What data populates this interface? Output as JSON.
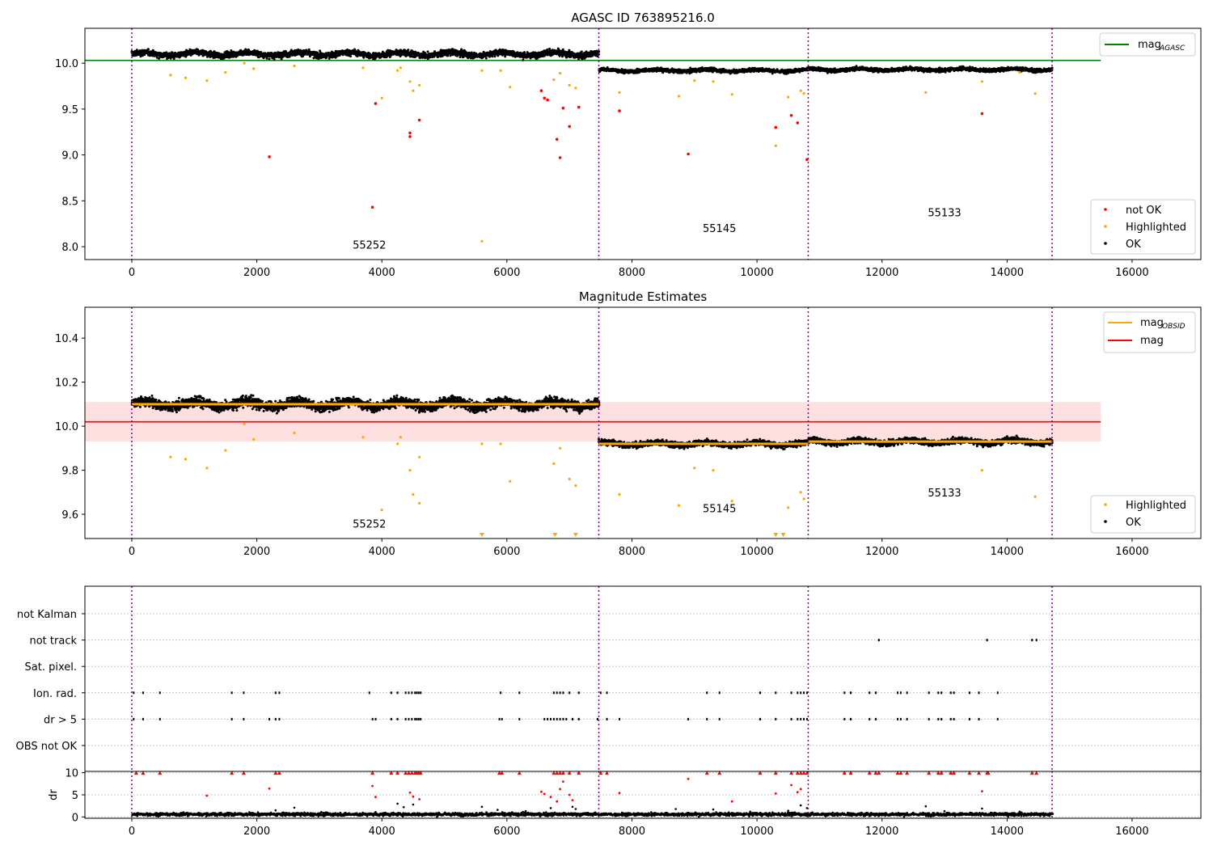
{
  "figure": {
    "title_top": "AGASC ID 763895216.0",
    "title_middle": "Magnitude Estimates"
  },
  "obsids": [
    {
      "id": "55252",
      "start": 0,
      "end": 7470
    },
    {
      "id": "55145",
      "start": 7470,
      "end": 10820
    },
    {
      "id": "55133",
      "start": 10820,
      "end": 14720
    }
  ],
  "chart_data": [
    {
      "type": "scatter",
      "title": "AGASC ID 763895216.0",
      "xlim": [
        -750,
        17100
      ],
      "ylim": [
        7.86,
        10.38
      ],
      "x_ticks": [
        0,
        2000,
        4000,
        6000,
        8000,
        10000,
        12000,
        14000,
        16000
      ],
      "y_ticks": [
        8.0,
        8.5,
        9.0,
        9.5,
        10.0
      ],
      "y_tick_labels": [
        "8.0",
        "8.5",
        "9.0",
        "9.5",
        "10.0"
      ],
      "legend_top": {
        "placement": "top-right",
        "entries": [
          {
            "label": "mag",
            "sub": "AGASC",
            "color": "#008000"
          }
        ]
      },
      "legend_bottom": {
        "placement": "lower-right",
        "entries": [
          {
            "label": "not OK",
            "color": "#ff0000"
          },
          {
            "label": "Highlighted",
            "color": "#ffa500"
          },
          {
            "label": "OK",
            "color": "#000000"
          }
        ]
      },
      "mag_agasc": 10.03,
      "ok_bands": [
        {
          "x": [
            0,
            7470
          ],
          "mean": 10.1,
          "spread": 0.05
        },
        {
          "x": [
            7470,
            10820
          ],
          "mean": 9.92,
          "spread": 0.03
        },
        {
          "x": [
            10820,
            14720
          ],
          "mean": 9.93,
          "spread": 0.03
        }
      ],
      "highlighted": [
        [
          620,
          9.87
        ],
        [
          860,
          9.84
        ],
        [
          1200,
          9.81
        ],
        [
          1500,
          9.9
        ],
        [
          1800,
          10.0
        ],
        [
          1950,
          9.94
        ],
        [
          2600,
          9.97
        ],
        [
          3700,
          9.95
        ],
        [
          4000,
          9.62
        ],
        [
          4250,
          9.92
        ],
        [
          4300,
          9.95
        ],
        [
          4450,
          9.8
        ],
        [
          4500,
          9.7
        ],
        [
          4600,
          9.76
        ],
        [
          5600,
          9.92
        ],
        [
          5600,
          8.06
        ],
        [
          5900,
          9.92
        ],
        [
          6050,
          9.74
        ],
        [
          6750,
          9.82
        ],
        [
          6850,
          9.89
        ],
        [
          7000,
          9.76
        ],
        [
          7100,
          9.73
        ],
        [
          7800,
          9.68
        ],
        [
          8750,
          9.64
        ],
        [
          9000,
          9.81
        ],
        [
          9300,
          9.8
        ],
        [
          9600,
          9.66
        ],
        [
          10300,
          9.1
        ],
        [
          10500,
          9.63
        ],
        [
          10700,
          9.7
        ],
        [
          10750,
          9.67
        ],
        [
          12700,
          9.68
        ],
        [
          13600,
          9.8
        ],
        [
          14200,
          9.9
        ],
        [
          14450,
          9.67
        ]
      ],
      "not_ok": [
        [
          2200,
          8.98
        ],
        [
          3850,
          8.43
        ],
        [
          3900,
          9.56
        ],
        [
          4450,
          9.24
        ],
        [
          4450,
          9.2
        ],
        [
          4600,
          9.38
        ],
        [
          6550,
          9.7
        ],
        [
          6600,
          9.62
        ],
        [
          6650,
          9.6
        ],
        [
          6800,
          9.17
        ],
        [
          6850,
          8.97
        ],
        [
          6900,
          9.51
        ],
        [
          7000,
          9.31
        ],
        [
          7150,
          9.52
        ],
        [
          7800,
          9.48
        ],
        [
          8900,
          9.01
        ],
        [
          10300,
          9.3
        ],
        [
          10550,
          9.43
        ],
        [
          10650,
          9.35
        ],
        [
          10800,
          8.95
        ],
        [
          13600,
          9.45
        ]
      ],
      "obsid_labels": [
        {
          "id": "55252",
          "x": 3800,
          "y": 7.98
        },
        {
          "id": "55145",
          "x": 9400,
          "y": 8.16
        },
        {
          "id": "55133",
          "x": 13000,
          "y": 8.33
        }
      ]
    },
    {
      "type": "scatter",
      "title": "Magnitude Estimates",
      "xlim": [
        -750,
        17100
      ],
      "ylim": [
        9.49,
        10.54
      ],
      "x_ticks": [
        0,
        2000,
        4000,
        6000,
        8000,
        10000,
        12000,
        14000,
        16000
      ],
      "y_ticks": [
        9.6,
        9.8,
        10.0,
        10.2,
        10.4
      ],
      "y_tick_labels": [
        "9.6",
        "9.8",
        "10.0",
        "10.2",
        "10.4"
      ],
      "legend_top": {
        "placement": "top-right",
        "entries": [
          {
            "label": "mag",
            "sub": "OBSID",
            "color": "#ffa500"
          },
          {
            "label": "mag",
            "sub": "",
            "color": "#ff0000"
          }
        ]
      },
      "legend_bottom": {
        "placement": "lower-right",
        "entries": [
          {
            "label": "Highlighted",
            "color": "#ffa500"
          },
          {
            "label": "OK",
            "color": "#000000"
          }
        ]
      },
      "mag": 10.02,
      "mag_band": [
        9.93,
        10.11
      ],
      "mag_obsid": [
        {
          "x": [
            0,
            7470
          ],
          "y": 10.1
        },
        {
          "x": [
            7470,
            10820
          ],
          "y": 9.92
        },
        {
          "x": [
            10820,
            14720
          ],
          "y": 9.93
        }
      ],
      "ok_bands": [
        {
          "x": [
            0,
            7470
          ],
          "mean": 10.1,
          "spread": 0.035
        },
        {
          "x": [
            7470,
            10820
          ],
          "mean": 9.92,
          "spread": 0.02
        },
        {
          "x": [
            10820,
            14720
          ],
          "mean": 9.93,
          "spread": 0.02
        }
      ],
      "highlighted": [
        [
          620,
          9.86
        ],
        [
          860,
          9.85
        ],
        [
          1200,
          9.81
        ],
        [
          1500,
          9.89
        ],
        [
          1800,
          10.01
        ],
        [
          1950,
          9.94
        ],
        [
          2600,
          9.97
        ],
        [
          3700,
          9.95
        ],
        [
          4000,
          9.62
        ],
        [
          4250,
          9.92
        ],
        [
          4300,
          9.95
        ],
        [
          4450,
          9.8
        ],
        [
          4500,
          9.69
        ],
        [
          4600,
          9.65
        ],
        [
          4600,
          9.86
        ],
        [
          5600,
          9.92
        ],
        [
          5900,
          9.92
        ],
        [
          6050,
          9.75
        ],
        [
          6750,
          9.83
        ],
        [
          6850,
          9.9
        ],
        [
          7000,
          9.76
        ],
        [
          7100,
          9.73
        ],
        [
          7800,
          9.69
        ],
        [
          8750,
          9.64
        ],
        [
          9000,
          9.81
        ],
        [
          9300,
          9.8
        ],
        [
          9600,
          9.66
        ],
        [
          10500,
          9.63
        ],
        [
          10700,
          9.7
        ],
        [
          10750,
          9.67
        ],
        [
          13600,
          9.8
        ],
        [
          14450,
          9.68
        ]
      ],
      "clipped": [
        5600,
        6770,
        7100,
        10300,
        10420
      ],
      "obsid_labels": [
        {
          "id": "55252",
          "x": 3800,
          "y": 9.54
        },
        {
          "id": "55145",
          "x": 9400,
          "y": 9.61
        },
        {
          "id": "55133",
          "x": 13000,
          "y": 9.68
        }
      ]
    },
    {
      "type": "scatter",
      "title": "",
      "xlim": [
        -750,
        17100
      ],
      "flag_rows": [
        "not Kalman",
        "not track",
        "Sat. pixel.",
        "Ion. rad.",
        "dr > 5",
        "OBS not OK"
      ],
      "flags": {
        "not track": [
          11950,
          13680,
          14400,
          14470
        ],
        "Ion. rad.": [
          30,
          180,
          450,
          1600,
          1790,
          2300,
          2360,
          3800,
          4150,
          4250,
          4380,
          4430,
          4480,
          4530,
          4560,
          4590,
          4620,
          5900,
          6200,
          6750,
          6800,
          6850,
          6900,
          7000,
          7150,
          7500,
          7600,
          9200,
          9400,
          10050,
          10300,
          10550,
          10650,
          10700,
          10750,
          10800,
          11400,
          11500,
          11800,
          11900,
          12250,
          12300,
          12400,
          12750,
          12900,
          12950,
          13100,
          13150,
          13400,
          13550,
          13850
        ],
        "dr > 5": [
          30,
          180,
          450,
          1600,
          1790,
          2200,
          2300,
          2360,
          3850,
          3900,
          4150,
          4250,
          4380,
          4430,
          4480,
          4530,
          4560,
          4590,
          4620,
          5880,
          5920,
          6200,
          6600,
          6650,
          6700,
          6750,
          6800,
          6850,
          6900,
          6950,
          7050,
          7150,
          7450,
          7600,
          7800,
          8900,
          9200,
          9400,
          10050,
          10300,
          10550,
          10650,
          10700,
          10750,
          10800,
          11400,
          11500,
          11800,
          11900,
          12250,
          12300,
          12400,
          12750,
          12900,
          12950,
          13100,
          13150,
          13400,
          13550,
          13850
        ]
      }
    },
    {
      "type": "scatter",
      "title": "",
      "ylabel": "dr",
      "xlim": [
        -750,
        17100
      ],
      "ylim": [
        -0.3,
        10.3
      ],
      "x_ticks": [
        0,
        2000,
        4000,
        6000,
        8000,
        10000,
        12000,
        14000,
        16000
      ],
      "y_ticks": [
        0,
        5,
        10
      ],
      "y_tick_labels": [
        "0",
        "5",
        "10"
      ],
      "red_points": [
        [
          1200,
          4.8
        ],
        [
          2200,
          6.4
        ],
        [
          3850,
          7.0
        ],
        [
          3900,
          4.5
        ],
        [
          4450,
          5.5
        ],
        [
          4500,
          4.6
        ],
        [
          4600,
          4.0
        ],
        [
          6550,
          5.7
        ],
        [
          6600,
          5.2
        ],
        [
          6700,
          4.5
        ],
        [
          6800,
          3.5
        ],
        [
          6850,
          6.3
        ],
        [
          6900,
          8.0
        ],
        [
          7000,
          5.0
        ],
        [
          7050,
          3.8
        ],
        [
          7800,
          5.4
        ],
        [
          8900,
          8.6
        ],
        [
          9600,
          3.5
        ],
        [
          10300,
          5.3
        ],
        [
          10550,
          7.2
        ],
        [
          10650,
          5.6
        ],
        [
          10700,
          6.3
        ],
        [
          13600,
          5.8
        ]
      ],
      "capped": [
        70,
        180,
        450,
        1600,
        1790,
        2300,
        2360,
        3850,
        4150,
        4250,
        4380,
        4430,
        4480,
        4530,
        4560,
        4590,
        4620,
        5880,
        5920,
        6200,
        6750,
        6800,
        6850,
        6900,
        7000,
        7150,
        7500,
        7600,
        9200,
        9400,
        10050,
        10300,
        10550,
        10650,
        10700,
        10750,
        10800,
        11400,
        11500,
        11800,
        11900,
        11950,
        12250,
        12300,
        12400,
        12750,
        12900,
        12950,
        13100,
        13150,
        13400,
        13550,
        13680,
        13700,
        14400,
        14470
      ],
      "black_band": {
        "x": [
          0,
          14720
        ],
        "mean": 0.6,
        "spread": 0.5
      },
      "black_outliers": [
        [
          2300,
          1.5
        ],
        [
          2600,
          2.1
        ],
        [
          3900,
          1.1
        ],
        [
          4250,
          3.0
        ],
        [
          4350,
          2.2
        ],
        [
          4500,
          2.8
        ],
        [
          5600,
          2.3
        ],
        [
          5850,
          1.6
        ],
        [
          6300,
          1.3
        ],
        [
          6700,
          2.0
        ],
        [
          7050,
          2.3
        ],
        [
          7100,
          1.8
        ],
        [
          8700,
          1.8
        ],
        [
          9300,
          1.7
        ],
        [
          10500,
          1.4
        ],
        [
          10700,
          2.6
        ],
        [
          10800,
          2.0
        ],
        [
          12700,
          2.4
        ],
        [
          13000,
          1.3
        ],
        [
          13600,
          1.9
        ],
        [
          14200,
          1.2
        ]
      ]
    }
  ]
}
